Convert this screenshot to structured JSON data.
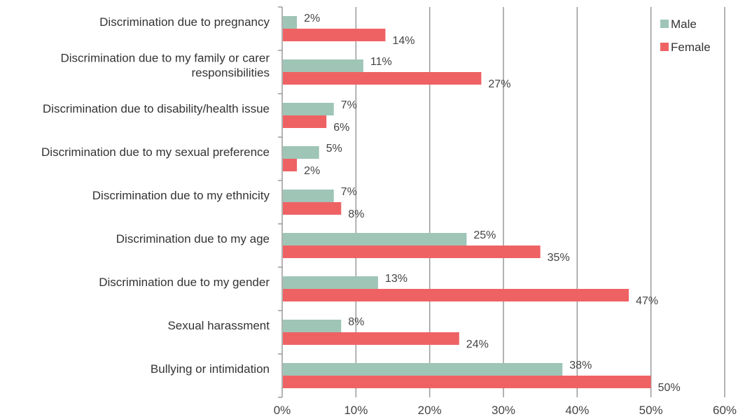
{
  "chart_data": {
    "type": "bar",
    "orientation": "horizontal",
    "title": "",
    "xlabel": "",
    "ylabel": "",
    "categories": [
      "Discrimination due to pregnancy",
      "Discrimination due  to my family or carer responsibilities",
      "Discrimination due to disability/health issue",
      "Discrimination due to my sexual preference",
      "Discrimination due to my ethnicity",
      "Discrimination due to my age",
      "Discrimination due to my gender",
      "Sexual harassment",
      "Bullying or intimidation"
    ],
    "category_lines": [
      [
        "Discrimination due to pregnancy"
      ],
      [
        "Discrimination due  to my family or carer",
        "responsibilities"
      ],
      [
        "Discrimination due to disability/health issue"
      ],
      [
        "Discrimination due to my sexual preference"
      ],
      [
        "Discrimination due to my ethnicity"
      ],
      [
        "Discrimination due to my age"
      ],
      [
        "Discrimination due to my gender"
      ],
      [
        "Sexual harassment"
      ],
      [
        "Bullying or intimidation"
      ]
    ],
    "series": [
      {
        "name": "Male",
        "color": "#9ec5b6",
        "values": [
          2,
          11,
          7,
          5,
          7,
          25,
          13,
          8,
          38
        ],
        "labels": [
          "2%",
          "11%",
          "7%",
          "5%",
          "7%",
          "25%",
          "13%",
          "8%",
          "38%"
        ]
      },
      {
        "name": "Female",
        "color": "#ef6264",
        "values": [
          14,
          27,
          6,
          2,
          8,
          35,
          47,
          24,
          50
        ],
        "labels": [
          "14%",
          "27%",
          "6%",
          "2%",
          "8%",
          "35%",
          "47%",
          "24%",
          "50%"
        ]
      }
    ],
    "xlim": [
      0,
      60
    ],
    "xticks": [
      0,
      10,
      20,
      30,
      40,
      50,
      60
    ],
    "xtick_labels": [
      "0%",
      "10%",
      "20%",
      "30%",
      "40%",
      "50%",
      "60%"
    ],
    "grid": "vertical",
    "legend_position": "top-right"
  }
}
